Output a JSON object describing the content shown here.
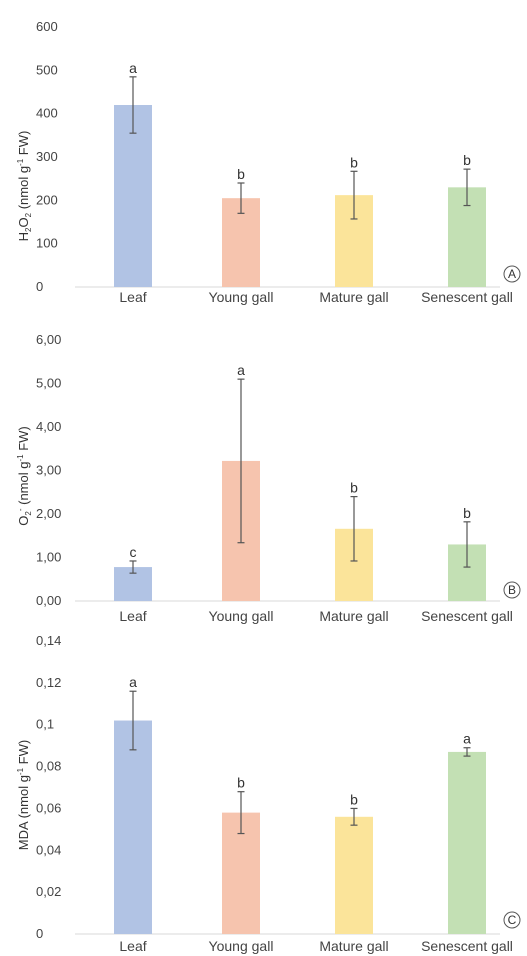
{
  "colors": [
    "#b1c3e4",
    "#f6c4ae",
    "#fbe49a",
    "#c3e0b4"
  ],
  "chart_data": [
    {
      "type": "bar",
      "panel": "A",
      "categories": [
        "Leaf",
        "Young gall",
        "Mature gall",
        "Senescent gall"
      ],
      "values": [
        420,
        205,
        212,
        230
      ],
      "errors": [
        65,
        35,
        55,
        42
      ],
      "letters": [
        "a",
        "b",
        "b",
        "b"
      ],
      "ylabel_parts": {
        "a": "H",
        "sub1": "2",
        "b": "O",
        "sub2": "2",
        "c": " (nmol g",
        "sup": "-1",
        "d": " FW)"
      },
      "ylim": [
        0,
        600
      ],
      "yticks": [
        "0",
        "100",
        "200",
        "300",
        "400",
        "500",
        "600"
      ]
    },
    {
      "type": "bar",
      "panel": "B",
      "categories": [
        "Leaf",
        "Young gall",
        "Mature gall",
        "Senescent gall"
      ],
      "values": [
        0.78,
        3.22,
        1.66,
        1.3
      ],
      "errors": [
        0.14,
        1.88,
        0.74,
        0.52
      ],
      "letters": [
        "c",
        "a",
        "b",
        "b"
      ],
      "ylabel_parts": {
        "a": "O",
        "sub1": "2",
        "sup1": "-",
        "c": " (nmol g",
        "sup": "-1",
        "d": " FW)"
      },
      "ylim": [
        0,
        6
      ],
      "yticks": [
        "0,00",
        "1,00",
        "2,00",
        "3,00",
        "4,00",
        "5,00",
        "6,00"
      ]
    },
    {
      "type": "bar",
      "panel": "C",
      "categories": [
        "Leaf",
        "Young gall",
        "Mature gall",
        "Senescent gall"
      ],
      "values": [
        0.102,
        0.058,
        0.056,
        0.087
      ],
      "errors": [
        0.014,
        0.01,
        0.004,
        0.002
      ],
      "letters": [
        "a",
        "b",
        "b",
        "a"
      ],
      "ylabel_parts": {
        "a": "MDA  (nmol g",
        "sup": "-1",
        "d": " FW)"
      },
      "ylim": [
        0,
        0.14
      ],
      "yticks": [
        "0",
        "0,02",
        "0,04",
        "0,06",
        "0,08",
        "0,1",
        "0,12",
        "0,14"
      ]
    }
  ]
}
